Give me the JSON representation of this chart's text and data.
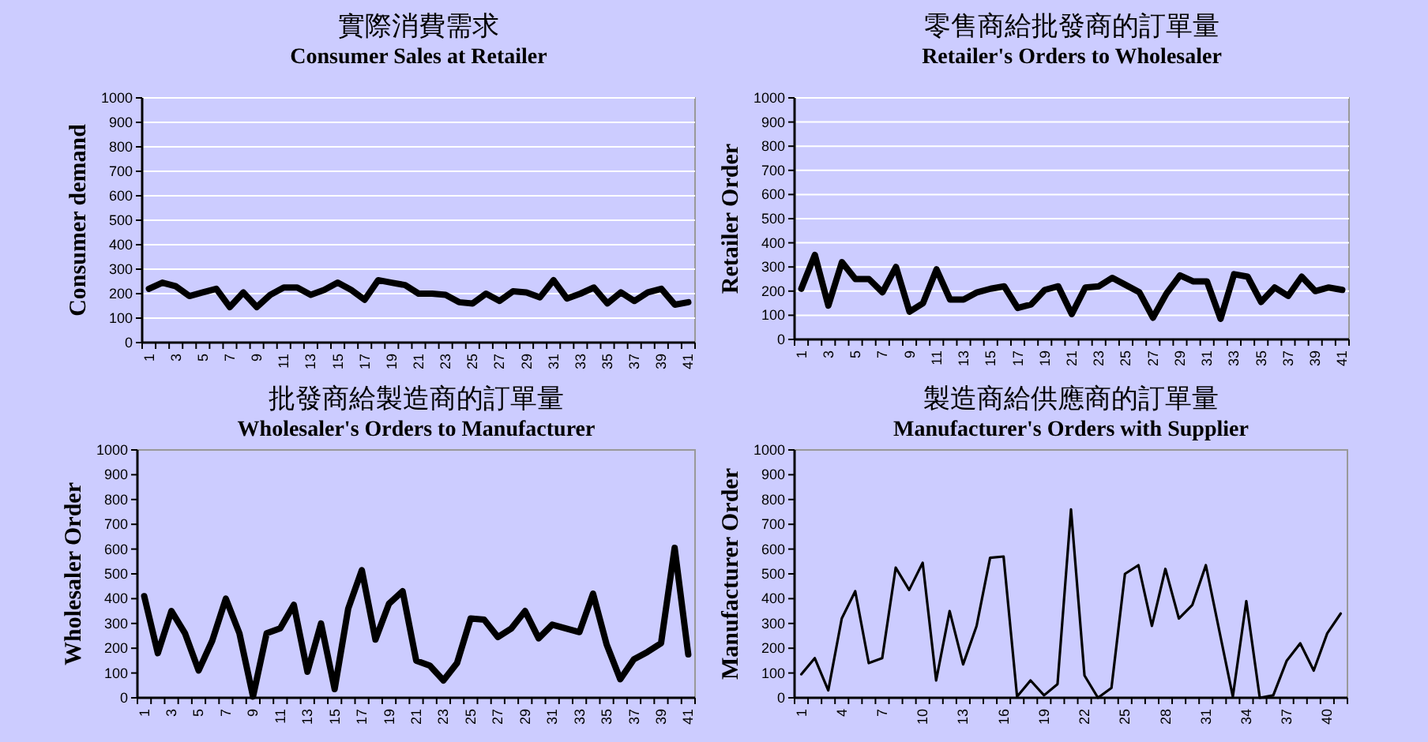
{
  "chart_data": [
    {
      "type": "line",
      "title": "實際消費需求",
      "subtitle": "Consumer Sales at Retailer",
      "ylabel": "Consumer demand",
      "categories": [
        "1",
        null,
        "3",
        null,
        "5",
        null,
        "7",
        null,
        "9",
        null,
        "11",
        null,
        "13",
        null,
        "15",
        null,
        "17",
        null,
        "19",
        null,
        "21",
        null,
        "23",
        null,
        "25",
        null,
        "27",
        null,
        "29",
        null,
        "31",
        null,
        "33",
        null,
        "35",
        null,
        "37",
        null,
        "39",
        null,
        "41"
      ],
      "series": [
        {
          "color": "#000000",
          "values": [
            220,
            245,
            230,
            190,
            205,
            220,
            145,
            205,
            145,
            195,
            225,
            225,
            195,
            215,
            245,
            215,
            175,
            255,
            245,
            235,
            200,
            200,
            195,
            165,
            160,
            200,
            170,
            210,
            205,
            185,
            255,
            180,
            200,
            225,
            160,
            205,
            170,
            205,
            220,
            155,
            165
          ]
        }
      ],
      "ylim": [
        0,
        1000
      ],
      "yticks": [
        0,
        100,
        200,
        300,
        400,
        500,
        600,
        700,
        800,
        900,
        1000
      ],
      "grid": "y"
    },
    {
      "type": "line",
      "title": "零售商給批發商的訂單量",
      "subtitle": "Retailer's Orders to Wholesaler",
      "ylabel": "Retailer Order",
      "categories": [
        "1",
        null,
        "3",
        null,
        "5",
        null,
        "7",
        null,
        "9",
        null,
        "11",
        null,
        "13",
        null,
        "15",
        null,
        "17",
        null,
        "19",
        null,
        "21",
        null,
        "23",
        null,
        "25",
        null,
        "27",
        null,
        "29",
        null,
        "31",
        null,
        "33",
        null,
        "35",
        null,
        "37",
        null,
        "39",
        null,
        "41"
      ],
      "series": [
        {
          "color": "#000000",
          "values": [
            210,
            350,
            140,
            320,
            250,
            250,
            195,
            300,
            115,
            150,
            290,
            165,
            165,
            195,
            210,
            220,
            130,
            145,
            205,
            220,
            105,
            215,
            220,
            255,
            225,
            195,
            90,
            190,
            265,
            240,
            240,
            85,
            270,
            260,
            155,
            215,
            180,
            260,
            200,
            215,
            205
          ]
        }
      ],
      "ylim": [
        0,
        1000
      ],
      "yticks": [
        0,
        100,
        200,
        300,
        400,
        500,
        600,
        700,
        800,
        900,
        1000
      ],
      "grid": "y"
    },
    {
      "type": "line",
      "title": "批發商給製造商的訂單量",
      "subtitle": "Wholesaler's Orders to Manufacturer",
      "ylabel": "Wholesaler Order",
      "categories": [
        "1",
        null,
        "3",
        null,
        "5",
        null,
        "7",
        null,
        "9",
        null,
        "11",
        null,
        "13",
        null,
        "15",
        null,
        "17",
        null,
        "19",
        null,
        "21",
        null,
        "23",
        null,
        "25",
        null,
        "27",
        null,
        "29",
        null,
        "31",
        null,
        "33",
        null,
        "35",
        null,
        "37",
        null,
        "39",
        null,
        "41"
      ],
      "series": [
        {
          "color": "#000000",
          "values": [
            410,
            180,
            350,
            260,
            110,
            230,
            400,
            260,
            5,
            260,
            280,
            375,
            105,
            300,
            35,
            360,
            515,
            235,
            380,
            430,
            150,
            130,
            70,
            140,
            320,
            315,
            245,
            280,
            350,
            240,
            295,
            280,
            265,
            420,
            215,
            75,
            155,
            185,
            220,
            605,
            175
          ]
        }
      ],
      "ylim": [
        0,
        1000
      ],
      "yticks": [
        0,
        100,
        200,
        300,
        400,
        500,
        600,
        700,
        800,
        900,
        1000
      ],
      "grid": false
    },
    {
      "type": "line",
      "title": "製造商給供應商的訂單量",
      "subtitle": "Manufacturer's Orders with Supplier",
      "ylabel": "Manufacturer Order",
      "categories": [
        "1",
        null,
        null,
        "4",
        null,
        null,
        "7",
        null,
        null,
        "10",
        null,
        null,
        "13",
        null,
        null,
        "16",
        null,
        null,
        "19",
        null,
        null,
        "22",
        null,
        null,
        "25",
        null,
        null,
        "28",
        null,
        null,
        "31",
        null,
        null,
        "34",
        null,
        null,
        "37",
        null,
        null,
        "40",
        null
      ],
      "series": [
        {
          "color": "#000000",
          "values": [
            95,
            160,
            30,
            320,
            430,
            140,
            160,
            525,
            435,
            545,
            70,
            350,
            135,
            290,
            565,
            570,
            5,
            70,
            10,
            55,
            760,
            90,
            0,
            40,
            500,
            535,
            290,
            520,
            320,
            375,
            535,
            270,
            5,
            390,
            0,
            10,
            150,
            220,
            110,
            260,
            340
          ]
        }
      ],
      "ylim": [
        0,
        1000
      ],
      "yticks": [
        0,
        100,
        200,
        300,
        400,
        500,
        600,
        700,
        800,
        900,
        1000
      ],
      "grid": false
    }
  ]
}
